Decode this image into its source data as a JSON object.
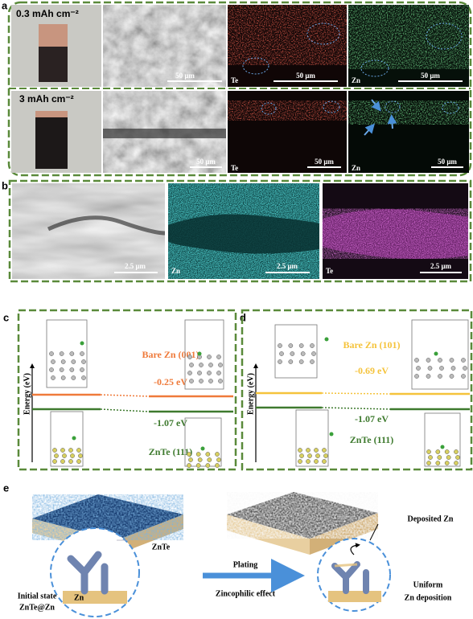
{
  "panel_a": {
    "label": "a",
    "rows": [
      {
        "capacity": "0.3 mAh cm⁻²",
        "sem_scale": "50 μm",
        "te_element": "Te",
        "te_scale": "50 μm",
        "zn_element": "Zn",
        "zn_scale": "50 μm"
      },
      {
        "capacity": "3 mAh cm⁻²",
        "sem_scale": "50 μm",
        "te_element": "Te",
        "te_scale": "50 μm",
        "zn_element": "Zn",
        "zn_scale": "50 μm"
      }
    ]
  },
  "panel_b": {
    "label": "b",
    "sem_scale": "2.5 μm",
    "zn_element": "Zn",
    "zn_scale": "2.5 μm",
    "te_element": "Te",
    "te_scale": "2.5 μm"
  },
  "panel_c": {
    "label": "c",
    "axis_label": "Energy (eV)",
    "surface": "Bare Zn (001)",
    "surface_energy": "-0.25 eV",
    "substrate_energy": "-1.07 eV",
    "substrate": "ZnTe (111)"
  },
  "panel_d": {
    "label": "d",
    "axis_label": "Energy (eV)",
    "surface": "Bare Zn (101)",
    "surface_energy": "-0.69 eV",
    "substrate_energy": "-1.07 eV",
    "substrate": "ZnTe (111)"
  },
  "panel_e": {
    "label": "e",
    "coating": "ZnTe",
    "initial_state": "Initial state",
    "initial_material": "ZnTe@Zn",
    "substrate": "Zn",
    "arrow_top": "Plating",
    "arrow_bottom": "Zincophilic effect",
    "deposited": "Deposited Zn",
    "result_1": "Uniform",
    "result_2": "Zn deposition"
  }
}
